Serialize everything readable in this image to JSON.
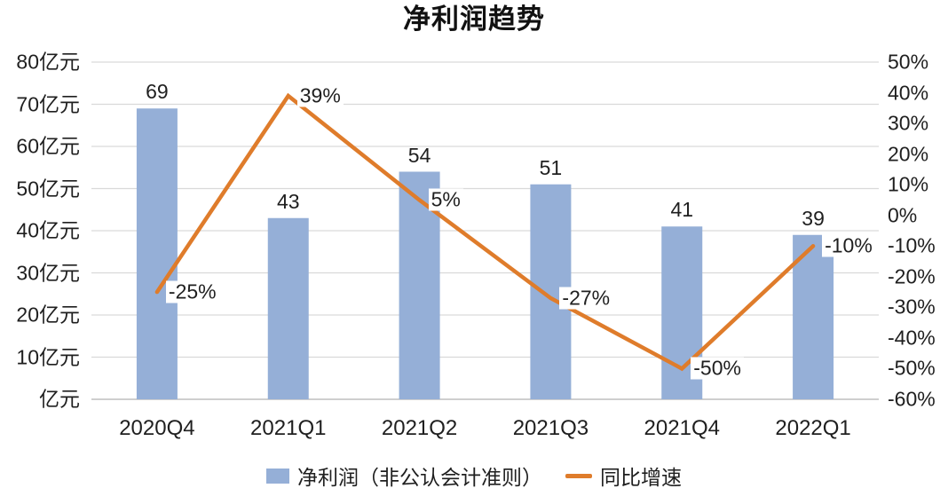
{
  "chart_data": {
    "type": "combo-bar-line",
    "title": "净利润趋势",
    "categories": [
      "2020Q4",
      "2021Q1",
      "2021Q2",
      "2021Q3",
      "2021Q4",
      "2022Q1"
    ],
    "series": [
      {
        "name": "净利润（非公认会计准则）",
        "type": "bar",
        "axis": "left",
        "unit": "亿元",
        "values": [
          69,
          43,
          54,
          51,
          41,
          39
        ],
        "labels": [
          "69",
          "43",
          "54",
          "51",
          "41",
          "39"
        ],
        "color": "#95AFD7"
      },
      {
        "name": "同比增速",
        "type": "line",
        "axis": "right",
        "unit": "%",
        "values": [
          -25,
          39,
          5,
          -27,
          -50,
          -10
        ],
        "labels": [
          "-25%",
          "39%",
          "5%",
          "-27%",
          "-50%",
          "-10%"
        ],
        "color": "#DF7C2B"
      }
    ],
    "left_axis": {
      "min": 0,
      "max": 80,
      "step": 10,
      "tick_labels_top_to_bottom": [
        "80亿元",
        "70亿元",
        "60亿元",
        "50亿元",
        "40亿元",
        "30亿元",
        "20亿元",
        "10亿元",
        "亿元"
      ]
    },
    "right_axis": {
      "min": -60,
      "max": 50,
      "step": 10,
      "tick_labels_top_to_bottom": [
        "50%",
        "40%",
        "30%",
        "20%",
        "10%",
        "0%",
        "-10%",
        "-20%",
        "-30%",
        "-40%",
        "-50%",
        "-60%"
      ]
    },
    "grid": true,
    "legend_position": "bottom",
    "colors": {
      "bar": "#95AFD7",
      "line": "#DF7C2B",
      "gridline": "#D9D9D9",
      "axis_line": "#BFBFBF",
      "text": "#1F1F1F"
    }
  }
}
